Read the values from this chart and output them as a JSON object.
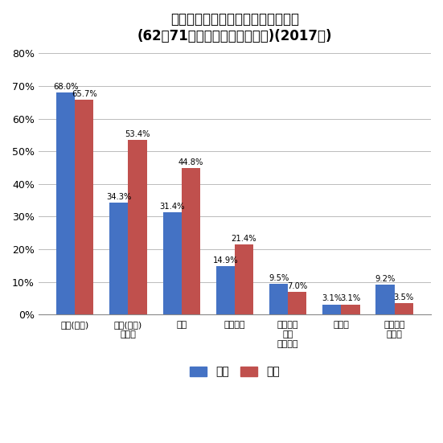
{
  "title_line1": "日頃から何かと頼りにしている相手",
  "title_line2": "(62～71歳、複数回答、男女別)(2017年)",
  "categories": [
    "家族(同居)",
    "家族(別居)\n・親族",
    "友人",
    "近所の人",
    "勤め先の\n同僚\n・元同僚",
    "その他",
    "頼る人が\nいない"
  ],
  "male_values": [
    68.0,
    34.3,
    31.4,
    14.9,
    9.5,
    3.1,
    9.2
  ],
  "female_values": [
    65.7,
    53.4,
    44.8,
    21.4,
    7.0,
    3.1,
    3.5
  ],
  "male_labels": [
    "68.0%",
    "34.3%",
    "31.4%",
    "14.9%",
    "9.5%",
    "3.1%",
    "9.2%"
  ],
  "female_labels": [
    "65.7%",
    "53.4%",
    "44.8%",
    "21.4%",
    "7.0%",
    "3.1%",
    "3.5%"
  ],
  "male_color": "#4472C4",
  "female_color": "#C0504D",
  "ylim": [
    0,
    80
  ],
  "yticks": [
    0,
    10,
    20,
    30,
    40,
    50,
    60,
    70,
    80
  ],
  "legend_male": "男性",
  "legend_female": "女性",
  "bg_color": "#FFFFFF",
  "grid_color": "#BBBBBB"
}
